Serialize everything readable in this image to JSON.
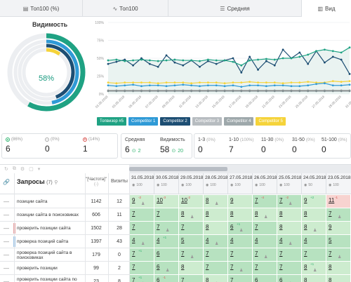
{
  "tabs": [
    {
      "icon": "table-icon",
      "glyph": "▤",
      "label": "Топ100 (%)"
    },
    {
      "icon": "trend-icon",
      "glyph": "∿",
      "label": "Топ100"
    },
    {
      "icon": "list-icon",
      "glyph": "☰",
      "label": "Средняя"
    },
    {
      "icon": "chart-icon",
      "glyph": "▥",
      "label": "Вид"
    }
  ],
  "visibility": {
    "title": "Видимость",
    "value": "58%",
    "rings": [
      {
        "name": "Топвизор #5",
        "color": "#1fa283",
        "fraction": 0.58
      },
      {
        "name": "Competitor 1",
        "color": "#2f9ad6",
        "fraction": 0.47
      },
      {
        "name": "Competitor 2",
        "color": "#1d4e73",
        "fraction": 0.44
      },
      {
        "name": "Competitor 5",
        "color": "#f5d33a",
        "fraction": 0.1
      }
    ]
  },
  "chart_data": {
    "type": "line",
    "ylim": [
      0,
      100
    ],
    "yticks": [
      "0%",
      "25%",
      "50%",
      "75%",
      "100%"
    ],
    "x": [
      "01.05.2018",
      "02.05.2018",
      "03.05.2018",
      "04.05.2018",
      "05.05.2018",
      "06.05.2018",
      "07.05.2018",
      "08.05.2018",
      "09.05.2018",
      "10.05.2018",
      "11.05.2018",
      "12.05.2018",
      "13.05.2018",
      "14.05.2018",
      "15.05.2018",
      "16.05.2018",
      "17.05.2018",
      "18.05.2018",
      "19.05.2018",
      "20.05.2018",
      "21.05.2018",
      "22.05.2018",
      "23.05.2018",
      "24.05.2018",
      "25.05.2018",
      "26.05.2018",
      "27.05.2018",
      "28.05.2018",
      "29.05.2018",
      "30.05.2018"
    ],
    "xticks_shown": [
      "01.05.2018",
      "03.05.2018",
      "05.05.2018",
      "07.05.2018",
      "09.05.2018",
      "11.05.2018",
      "13.05.2018",
      "15.05.2018",
      "17.05.2018",
      "19.05.2018",
      "21.05.2018",
      "23.05.2018",
      "25.05.2018",
      "27.05.2018",
      "29.05.2018",
      "31.05.2018"
    ],
    "series": [
      {
        "name": "Топвизор #5",
        "color": "#1fa283",
        "values": [
          47,
          48,
          46,
          47,
          48,
          47,
          46,
          47,
          48,
          47,
          47,
          46,
          48,
          47,
          47,
          45,
          40,
          47,
          48,
          49,
          48,
          50,
          50,
          52,
          55,
          60,
          62,
          60,
          58,
          65
        ]
      },
      {
        "name": "Competitor 1",
        "color": "#2f9ad6",
        "values": [
          12,
          11,
          12,
          13,
          11,
          12,
          12,
          11,
          12,
          13,
          12,
          11,
          12,
          12,
          11,
          12,
          10,
          12,
          12,
          11,
          12,
          12,
          11,
          11,
          12,
          14,
          15,
          12,
          12,
          13
        ]
      },
      {
        "name": "Competitor 2",
        "color": "#1d4e73",
        "values": [
          42,
          45,
          48,
          40,
          50,
          42,
          38,
          54,
          44,
          40,
          47,
          38,
          46,
          42,
          47,
          50,
          30,
          52,
          34,
          46,
          40,
          62,
          50,
          58,
          42,
          60,
          44,
          52,
          48,
          28
        ]
      },
      {
        "name": "Competitor 3",
        "color": "#9e9e9e",
        "values": [
          5,
          5,
          5,
          5,
          5,
          5,
          5,
          5,
          5,
          5,
          5,
          5,
          5,
          5,
          5,
          5,
          5,
          5,
          5,
          5,
          5,
          5,
          5,
          5,
          5,
          5,
          5,
          5,
          5,
          5
        ]
      },
      {
        "name": "Competitor 4",
        "color": "#7d8a8d",
        "values": [
          4,
          4,
          4,
          4,
          4,
          4,
          4,
          4,
          4,
          4,
          4,
          4,
          4,
          4,
          4,
          4,
          4,
          4,
          4,
          4,
          4,
          4,
          4,
          4,
          4,
          4,
          4,
          4,
          4,
          4
        ]
      },
      {
        "name": "Competitor 5",
        "color": "#f5d33a",
        "values": [
          16,
          15,
          16,
          16,
          16,
          16,
          15,
          16,
          16,
          16,
          15,
          16,
          16,
          16,
          15,
          16,
          16,
          17,
          16,
          16,
          16,
          15,
          16,
          16,
          17,
          16,
          16,
          18,
          17,
          18
        ]
      }
    ],
    "legend": [
      "Топвизор #5",
      "Competitor 1",
      "Competitor 2",
      "Competitor 3",
      "Competitor 4",
      "Competitor 5"
    ],
    "legend_position": "bottom"
  },
  "stats": {
    "groups": [
      {
        "label": "(86%)",
        "dot": "g",
        "value": "6"
      },
      {
        "label": "(0%)",
        "dot": "gr",
        "value": "0"
      },
      {
        "label": "(14%)",
        "dot": "r",
        "value": "1"
      },
      {
        "label": "Средняя",
        "dot": "",
        "value": "6",
        "delta": "2"
      },
      {
        "label": "Видимость",
        "dot": "",
        "value": "58",
        "delta": "20"
      },
      {
        "label": "1-3",
        "pct": "(0%)",
        "value": "0"
      },
      {
        "label": "1-10",
        "pct": "(100%)",
        "value": "7"
      },
      {
        "label": "11-30",
        "pct": "(0%)",
        "value": "0"
      },
      {
        "label": "31-50",
        "pct": "(0%)",
        "value": "0"
      },
      {
        "label": "51-100",
        "pct": "(0%)",
        "value": "0"
      }
    ]
  },
  "table": {
    "queries_title": "Запросы",
    "queries_count": "(7)",
    "freq_header": "\"[Частота]\"",
    "freq_sub": "(-)",
    "visits_header": "Визиты",
    "dates": [
      "31.05.2018",
      "30.05.2018",
      "29.05.2018",
      "28.05.2018",
      "27.05.2018",
      "26.05.2018",
      "25.05.2018",
      "24.05.2018",
      "23.05.2018"
    ],
    "date_sub": "100",
    "date_sub_alt": "50",
    "rows": [
      {
        "query": "позиции сайта",
        "freq": "1142",
        "visits": "12",
        "tag": "",
        "cells": [
          {
            "p": "9",
            "c": "-2",
            "dir": "down"
          },
          {
            "p": "10",
            "c": "-3",
            "dir": "down"
          },
          {
            "p": "10",
            "c": "-2",
            "dir": "down"
          },
          {
            "p": "8",
            "c": "",
            "dir": ""
          },
          {
            "p": "9",
            "c": "",
            "dir": ""
          },
          {
            "p": "7",
            "c": "-4",
            "dir": "down"
          },
          {
            "p": "7",
            "c": "-2",
            "dir": "down"
          },
          {
            "p": "9",
            "c": "+2",
            "dir": "up"
          },
          {
            "p": "11",
            "c": "-1",
            "dir": "down"
          }
        ]
      },
      {
        "query": "позиции сайта в поисковиках",
        "freq": "606",
        "visits": "11",
        "tag": "",
        "cells": [
          {
            "p": "7",
            "c": "",
            "dir": ""
          },
          {
            "p": "7",
            "c": "",
            "dir": ""
          },
          {
            "p": "8",
            "c": "",
            "dir": ""
          },
          {
            "p": "8",
            "c": "",
            "dir": ""
          },
          {
            "p": "8",
            "c": "",
            "dir": ""
          },
          {
            "p": "8",
            "c": "",
            "dir": ""
          },
          {
            "p": "8",
            "c": "",
            "dir": ""
          },
          {
            "p": "8",
            "c": "",
            "dir": ""
          },
          {
            "p": "7",
            "c": "",
            "dir": ""
          }
        ]
      },
      {
        "query": "проверить позиции сайта",
        "freq": "1502",
        "visits": "28",
        "tag": "#e9a0a0",
        "cells": [
          {
            "p": "7",
            "c": "",
            "dir": ""
          },
          {
            "p": "7",
            "c": "",
            "dir": ""
          },
          {
            "p": "7",
            "c": "",
            "dir": ""
          },
          {
            "p": "8",
            "c": "",
            "dir": ""
          },
          {
            "p": "6",
            "c": "+1",
            "dir": "up"
          },
          {
            "p": "7",
            "c": "",
            "dir": ""
          },
          {
            "p": "8",
            "c": "",
            "dir": ""
          },
          {
            "p": "8",
            "c": "",
            "dir": ""
          },
          {
            "p": "9",
            "c": "",
            "dir": ""
          }
        ]
      },
      {
        "query": "проверка позиций сайта",
        "freq": "1397",
        "visits": "43",
        "tag": "#9cc5e8",
        "cells": [
          {
            "p": "4",
            "c": "",
            "dir": ""
          },
          {
            "p": "4",
            "c": "+1",
            "dir": "up"
          },
          {
            "p": "5",
            "c": "",
            "dir": ""
          },
          {
            "p": "4",
            "c": "",
            "dir": ""
          },
          {
            "p": "4",
            "c": "",
            "dir": ""
          },
          {
            "p": "4",
            "c": "",
            "dir": ""
          },
          {
            "p": "4",
            "c": "",
            "dir": ""
          },
          {
            "p": "4",
            "c": "",
            "dir": ""
          },
          {
            "p": "5",
            "c": "",
            "dir": ""
          }
        ]
      },
      {
        "query": "проверка позиций сайта в поисковиках",
        "freq": "179",
        "visits": "0",
        "tag": "",
        "cells": [
          {
            "p": "7",
            "c": "+1",
            "dir": "up"
          },
          {
            "p": "6",
            "c": "",
            "dir": ""
          },
          {
            "p": "7",
            "c": "",
            "dir": ""
          },
          {
            "p": "7",
            "c": "",
            "dir": ""
          },
          {
            "p": "7",
            "c": "",
            "dir": ""
          },
          {
            "p": "7",
            "c": "",
            "dir": ""
          },
          {
            "p": "7",
            "c": "",
            "dir": ""
          },
          {
            "p": "7",
            "c": "",
            "dir": ""
          },
          {
            "p": "7",
            "c": "",
            "dir": ""
          }
        ]
      },
      {
        "query": "проверить позиции",
        "freq": "99",
        "visits": "2",
        "tag": "",
        "cells": [
          {
            "p": "7",
            "c": "",
            "dir": ""
          },
          {
            "p": "6",
            "c": "",
            "dir": ""
          },
          {
            "p": "8",
            "c": "",
            "dir": ""
          },
          {
            "p": "7",
            "c": "",
            "dir": ""
          },
          {
            "p": "7",
            "c": "",
            "dir": ""
          },
          {
            "p": "7",
            "c": "",
            "dir": ""
          },
          {
            "p": "7",
            "c": "",
            "dir": ""
          },
          {
            "p": "8",
            "c": "+1",
            "dir": "up"
          },
          {
            "p": "8",
            "c": "",
            "dir": ""
          }
        ]
      },
      {
        "query": "проверить позиции сайта по ключевым запросам",
        "freq": "23",
        "visits": "8",
        "tag": "",
        "cells": [
          {
            "p": "7",
            "c": "+1",
            "dir": "up"
          },
          {
            "p": "6",
            "c": "-1",
            "dir": "down"
          },
          {
            "p": "7",
            "c": "",
            "dir": ""
          },
          {
            "p": "8",
            "c": "",
            "dir": ""
          },
          {
            "p": "7",
            "c": "",
            "dir": ""
          },
          {
            "p": "6",
            "c": "",
            "dir": ""
          },
          {
            "p": "6",
            "c": "",
            "dir": ""
          },
          {
            "p": "8",
            "c": "",
            "dir": ""
          },
          {
            "p": "8",
            "c": "",
            "dir": ""
          }
        ]
      }
    ]
  },
  "colors": {
    "cell_good": "#b7e2c0",
    "cell_good_light": "#cdeccf",
    "cell_bad": "#f7d3d0",
    "up": "#2cb36d",
    "down": "#d9534f"
  }
}
